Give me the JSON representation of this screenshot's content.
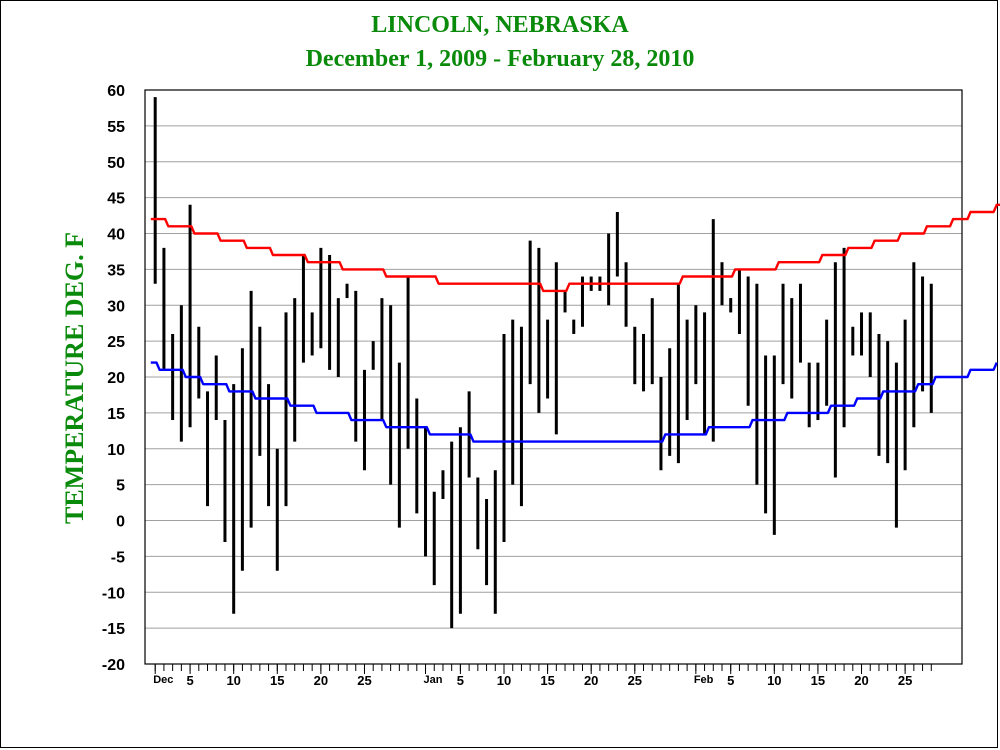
{
  "title": "LINCOLN, NEBRASKA",
  "subtitle": "December 1, 2009 - February 28, 2010",
  "chart_data": {
    "type": "bar",
    "title": "LINCOLN, NEBRASKA",
    "subtitle": "December 1, 2009 - February 28, 2010",
    "ylabel": "TEMPERATURE DEG. F",
    "xlabel": "",
    "ylim": [
      -20,
      60
    ],
    "yticks": [
      -20,
      -15,
      -10,
      -5,
      0,
      5,
      10,
      15,
      20,
      25,
      30,
      35,
      40,
      45,
      50,
      55,
      60
    ],
    "grid": true,
    "x_tick_labels": [
      {
        "day": 1,
        "label": "Dec"
      },
      {
        "day": 5,
        "label": "5"
      },
      {
        "day": 10,
        "label": "10"
      },
      {
        "day": 15,
        "label": "15"
      },
      {
        "day": 20,
        "label": "20"
      },
      {
        "day": 25,
        "label": "25"
      },
      {
        "day": 32,
        "label": "Jan"
      },
      {
        "day": 36,
        "label": "5"
      },
      {
        "day": 41,
        "label": "10"
      },
      {
        "day": 46,
        "label": "15"
      },
      {
        "day": 51,
        "label": "20"
      },
      {
        "day": 56,
        "label": "25"
      },
      {
        "day": 63,
        "label": "Feb"
      },
      {
        "day": 67,
        "label": "5"
      },
      {
        "day": 72,
        "label": "10"
      },
      {
        "day": 77,
        "label": "15"
      },
      {
        "day": 82,
        "label": "20"
      },
      {
        "day": 87,
        "label": "25"
      }
    ],
    "daily_range": [
      [
        33,
        59
      ],
      [
        21,
        38
      ],
      [
        14,
        26
      ],
      [
        11,
        30
      ],
      [
        13,
        44
      ],
      [
        17,
        27
      ],
      [
        2,
        18
      ],
      [
        14,
        23
      ],
      [
        -3,
        14
      ],
      [
        -13,
        19
      ],
      [
        -7,
        24
      ],
      [
        -1,
        32
      ],
      [
        9,
        27
      ],
      [
        2,
        19
      ],
      [
        -7,
        10
      ],
      [
        2,
        29
      ],
      [
        11,
        31
      ],
      [
        22,
        37
      ],
      [
        23,
        29
      ],
      [
        24,
        38
      ],
      [
        21,
        37
      ],
      [
        20,
        31
      ],
      [
        31,
        33
      ],
      [
        11,
        32
      ],
      [
        7,
        21
      ],
      [
        21,
        25
      ],
      [
        14,
        31
      ],
      [
        5,
        30
      ],
      [
        -1,
        22
      ],
      [
        10,
        34
      ],
      [
        1,
        17
      ],
      [
        -5,
        13
      ],
      [
        -9,
        4
      ],
      [
        3,
        7
      ],
      [
        -15,
        11
      ],
      [
        -13,
        13
      ],
      [
        6,
        18
      ],
      [
        -4,
        6
      ],
      [
        -9,
        3
      ],
      [
        -13,
        7
      ],
      [
        -3,
        26
      ],
      [
        5,
        28
      ],
      [
        2,
        27
      ],
      [
        19,
        39
      ],
      [
        15,
        38
      ],
      [
        17,
        28
      ],
      [
        12,
        36
      ],
      [
        29,
        32
      ],
      [
        26,
        28
      ],
      [
        27,
        34
      ],
      [
        32,
        34
      ],
      [
        32,
        34
      ],
      [
        30,
        40
      ],
      [
        34,
        43
      ],
      [
        27,
        36
      ],
      [
        19,
        27
      ],
      [
        18,
        26
      ],
      [
        19,
        31
      ],
      [
        7,
        20
      ],
      [
        9,
        24
      ],
      [
        8,
        33
      ],
      [
        14,
        28
      ],
      [
        19,
        30
      ],
      [
        12,
        29
      ],
      [
        11,
        42
      ],
      [
        30,
        36
      ],
      [
        29,
        31
      ],
      [
        26,
        35
      ],
      [
        16,
        34
      ],
      [
        5,
        33
      ],
      [
        1,
        23
      ],
      [
        -2,
        23
      ],
      [
        19,
        33
      ],
      [
        17,
        31
      ],
      [
        22,
        33
      ],
      [
        13,
        22
      ],
      [
        14,
        22
      ],
      [
        16,
        28
      ],
      [
        6,
        36
      ],
      [
        13,
        38
      ],
      [
        23,
        27
      ],
      [
        23,
        29
      ],
      [
        20,
        29
      ],
      [
        9,
        26
      ],
      [
        8,
        25
      ],
      [
        -1,
        22
      ],
      [
        7,
        28
      ],
      [
        13,
        36
      ],
      [
        18,
        34
      ],
      [
        15,
        33
      ]
    ],
    "series": [
      {
        "color": "#ff0000",
        "step_values": [
          42,
          42,
          41,
          41,
          41,
          40,
          40,
          40,
          39,
          39,
          39,
          38,
          38,
          38,
          37,
          37,
          37,
          37,
          36,
          36,
          36,
          36,
          35,
          35,
          35,
          35,
          35,
          34,
          34,
          34,
          34,
          34,
          34,
          33,
          33,
          33,
          33,
          33,
          33,
          33,
          33,
          33,
          33,
          33,
          33,
          32,
          32,
          32,
          33,
          33,
          33,
          33,
          33,
          33,
          33,
          33,
          33,
          33,
          33,
          33,
          33,
          34,
          34,
          34,
          34,
          34,
          34,
          35,
          35,
          35,
          35,
          35,
          36,
          36,
          36,
          36,
          36,
          37,
          37,
          37,
          38,
          38,
          38,
          39,
          39,
          39,
          40,
          40,
          40,
          41,
          41,
          41,
          42,
          42,
          43,
          43,
          43,
          44,
          44
        ]
      },
      {
        "color": "#0000ff",
        "step_values": [
          22,
          21,
          21,
          21,
          20,
          20,
          19,
          19,
          19,
          18,
          18,
          18,
          17,
          17,
          17,
          17,
          16,
          16,
          16,
          15,
          15,
          15,
          15,
          14,
          14,
          14,
          14,
          13,
          13,
          13,
          13,
          13,
          12,
          12,
          12,
          12,
          12,
          11,
          11,
          11,
          11,
          11,
          11,
          11,
          11,
          11,
          11,
          11,
          11,
          11,
          11,
          11,
          11,
          11,
          11,
          11,
          11,
          11,
          11,
          12,
          12,
          12,
          12,
          12,
          13,
          13,
          13,
          13,
          13,
          14,
          14,
          14,
          14,
          15,
          15,
          15,
          15,
          15,
          16,
          16,
          16,
          17,
          17,
          17,
          18,
          18,
          18,
          18,
          19,
          19,
          20,
          20,
          20,
          20,
          21,
          21,
          21,
          22
        ]
      }
    ]
  }
}
